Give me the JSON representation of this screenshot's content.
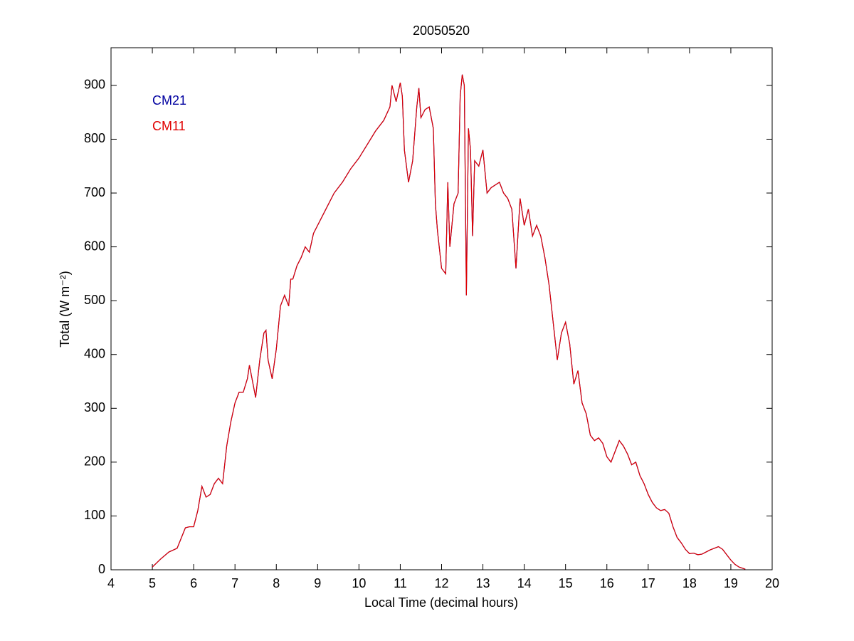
{
  "chart_data": {
    "type": "line",
    "title": "20050520",
    "xlabel": "Local Time (decimal hours)",
    "ylabel": "Total (W m⁻²)",
    "xlim": [
      4,
      20
    ],
    "ylim": [
      0,
      970
    ],
    "xticks": [
      4,
      5,
      6,
      7,
      8,
      9,
      10,
      11,
      12,
      13,
      14,
      15,
      16,
      17,
      18,
      19,
      20
    ],
    "yticks": [
      0,
      100,
      200,
      300,
      400,
      500,
      600,
      700,
      800,
      900
    ],
    "grid": false,
    "legend": "upper left",
    "x": [
      5.0,
      5.2,
      5.4,
      5.6,
      5.8,
      5.9,
      6.0,
      6.1,
      6.2,
      6.3,
      6.4,
      6.5,
      6.6,
      6.7,
      6.8,
      6.9,
      7.0,
      7.1,
      7.2,
      7.3,
      7.35,
      7.5,
      7.6,
      7.7,
      7.75,
      7.8,
      7.9,
      8.0,
      8.1,
      8.2,
      8.3,
      8.35,
      8.4,
      8.5,
      8.6,
      8.7,
      8.8,
      8.9,
      9.0,
      9.2,
      9.4,
      9.6,
      9.8,
      10.0,
      10.2,
      10.4,
      10.6,
      10.75,
      10.8,
      10.9,
      11.0,
      11.05,
      11.1,
      11.2,
      11.3,
      11.4,
      11.45,
      11.5,
      11.6,
      11.7,
      11.8,
      11.85,
      11.9,
      12.0,
      12.1,
      12.15,
      12.2,
      12.3,
      12.4,
      12.45,
      12.5,
      12.55,
      12.6,
      12.65,
      12.7,
      12.75,
      12.8,
      12.9,
      13.0,
      13.1,
      13.2,
      13.4,
      13.5,
      13.6,
      13.7,
      13.8,
      13.9,
      14.0,
      14.1,
      14.2,
      14.3,
      14.4,
      14.5,
      14.6,
      14.7,
      14.8,
      14.9,
      15.0,
      15.1,
      15.2,
      15.3,
      15.4,
      15.5,
      15.6,
      15.7,
      15.8,
      15.9,
      16.0,
      16.1,
      16.2,
      16.3,
      16.4,
      16.5,
      16.6,
      16.7,
      16.8,
      16.9,
      17.0,
      17.1,
      17.2,
      17.3,
      17.4,
      17.5,
      17.6,
      17.7,
      17.8,
      17.9,
      18.0,
      18.1,
      18.2,
      18.3,
      18.4,
      18.5,
      18.6,
      18.7,
      18.8,
      18.9,
      19.0,
      19.1,
      19.2,
      19.35
    ],
    "series": [
      {
        "name": "CM21",
        "color": "#0000a0",
        "values": [
          5,
          20,
          33,
          40,
          78,
          80,
          80,
          110,
          155,
          135,
          140,
          160,
          170,
          160,
          230,
          275,
          310,
          330,
          330,
          355,
          380,
          320,
          390,
          440,
          445,
          390,
          355,
          410,
          490,
          510,
          490,
          540,
          540,
          565,
          580,
          600,
          590,
          625,
          640,
          670,
          700,
          720,
          745,
          765,
          790,
          815,
          835,
          860,
          900,
          870,
          905,
          880,
          780,
          720,
          760,
          860,
          895,
          840,
          855,
          860,
          820,
          680,
          630,
          560,
          550,
          720,
          600,
          680,
          700,
          880,
          920,
          900,
          510,
          820,
          780,
          620,
          760,
          750,
          780,
          700,
          710,
          720,
          700,
          690,
          670,
          560,
          690,
          640,
          670,
          620,
          640,
          620,
          580,
          530,
          460,
          390,
          440,
          460,
          420,
          345,
          370,
          310,
          290,
          250,
          240,
          245,
          235,
          210,
          200,
          220,
          240,
          230,
          215,
          195,
          200,
          175,
          160,
          140,
          125,
          115,
          110,
          112,
          105,
          80,
          60,
          50,
          38,
          30,
          31,
          28,
          29,
          33,
          37,
          40,
          43,
          38,
          28,
          18,
          10,
          5,
          1
        ]
      },
      {
        "name": "CM11",
        "color": "#e00000",
        "values": [
          5,
          20,
          33,
          40,
          78,
          80,
          80,
          110,
          155,
          135,
          140,
          160,
          170,
          160,
          230,
          275,
          310,
          330,
          330,
          355,
          380,
          320,
          390,
          440,
          445,
          390,
          355,
          410,
          490,
          510,
          490,
          540,
          540,
          565,
          580,
          600,
          590,
          625,
          640,
          670,
          700,
          720,
          745,
          765,
          790,
          815,
          835,
          860,
          900,
          870,
          905,
          880,
          780,
          720,
          760,
          860,
          895,
          840,
          855,
          860,
          820,
          680,
          630,
          560,
          550,
          720,
          600,
          680,
          700,
          880,
          920,
          900,
          510,
          820,
          780,
          620,
          760,
          750,
          780,
          700,
          710,
          720,
          700,
          690,
          670,
          560,
          690,
          640,
          670,
          620,
          640,
          620,
          580,
          530,
          460,
          390,
          440,
          460,
          420,
          345,
          370,
          310,
          290,
          250,
          240,
          245,
          235,
          210,
          200,
          220,
          240,
          230,
          215,
          195,
          200,
          175,
          160,
          140,
          125,
          115,
          110,
          112,
          105,
          80,
          60,
          50,
          38,
          30,
          31,
          28,
          29,
          33,
          37,
          40,
          43,
          38,
          28,
          18,
          10,
          5,
          1
        ]
      }
    ]
  }
}
